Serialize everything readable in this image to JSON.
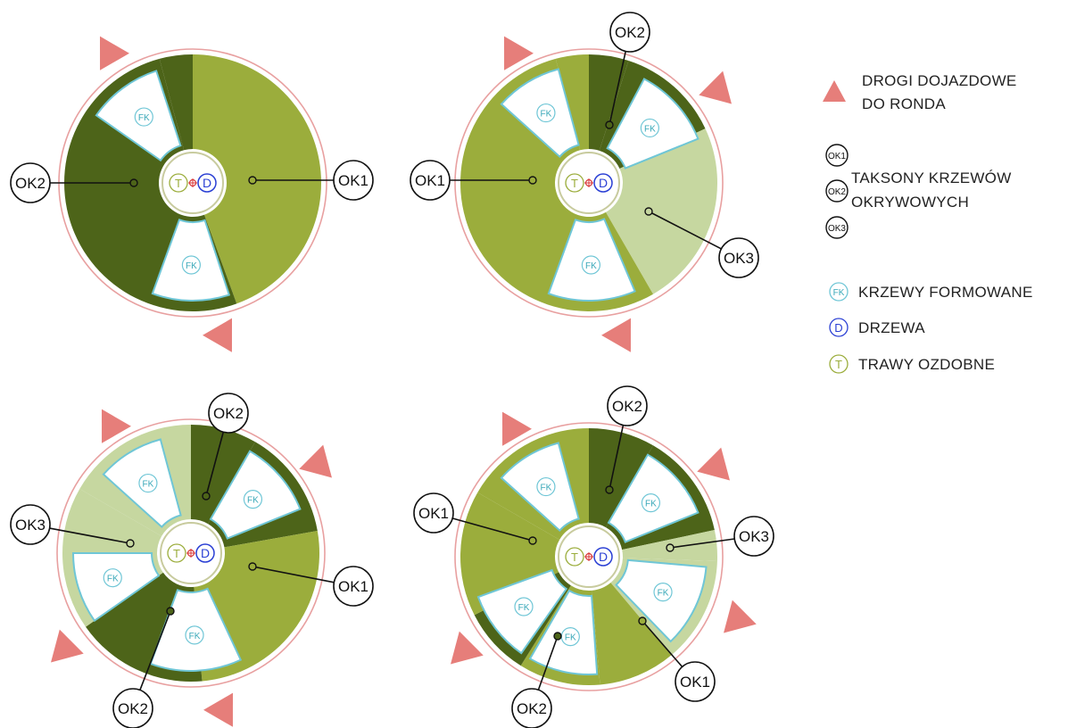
{
  "colors": {
    "ok1": "#9bad3c",
    "ok2": "#4d6419",
    "ok3": "#c6d7a0",
    "fk_fill": "#ffffff",
    "fk_border": "#6fc6d6",
    "fk_text": "#39a8b8",
    "ring": "#e8a0a0",
    "triangle": "#e67e7a",
    "d_color": "#2a3fd4",
    "t_color": "#9bad3c",
    "center_mark": "#d93a3a",
    "center_border": "#c8cb9e"
  },
  "symbols": {
    "fk": "FK",
    "d": "D",
    "t": "T",
    "ok1": "OK1",
    "ok2": "OK2",
    "ok3": "OK3"
  },
  "legend": {
    "roads_line1": "DROGI DOJAZDOWE",
    "roads_line2": "DO RONDA",
    "taxa_line1": "TAKSONY KRZEWÓW",
    "taxa_line2": "OKRYWOWYCH",
    "fk_label": "KRZEWY FORMOWANE",
    "d_label": "DRZEWA",
    "t_label": "TRAWY OZDOBNE"
  },
  "roundabouts": [
    {
      "id": "top-left",
      "sectors": [
        {
          "from": 0,
          "to": 160,
          "type": "ok1"
        },
        {
          "from": 160,
          "to": 345,
          "type": "ok2"
        },
        {
          "from": 345,
          "to": 360,
          "type": "ok2"
        }
      ],
      "fk": [
        {
          "from": -55,
          "to": -18
        },
        {
          "from": 162,
          "to": 200
        }
      ],
      "labels": [
        {
          "text": "OK1",
          "type": "ok1"
        },
        {
          "text": "OK2",
          "type": "ok2"
        }
      ],
      "roads": 2
    },
    {
      "id": "top-right",
      "sectors": [
        {
          "from": 0,
          "to": 18,
          "type": "ok2"
        },
        {
          "from": 18,
          "to": 65,
          "type": "ok2"
        },
        {
          "from": 65,
          "to": 150,
          "type": "ok3"
        },
        {
          "from": 150,
          "to": 345,
          "type": "ok1"
        },
        {
          "from": 345,
          "to": 360,
          "type": "ok1"
        }
      ],
      "fk": [
        {
          "from": -48,
          "to": -15
        },
        {
          "from": 28,
          "to": 68
        },
        {
          "from": 157,
          "to": 200
        }
      ],
      "labels": [
        {
          "text": "OK1",
          "type": "ok1"
        },
        {
          "text": "OK2",
          "type": "ok2"
        },
        {
          "text": "OK3",
          "type": "ok3"
        }
      ],
      "roads": 3
    },
    {
      "id": "bottom-left",
      "sectors": [
        {
          "from": 0,
          "to": 30,
          "type": "ok2"
        },
        {
          "from": 30,
          "to": 80,
          "type": "ok2"
        },
        {
          "from": 80,
          "to": 175,
          "type": "ok1"
        },
        {
          "from": 175,
          "to": 235,
          "type": "ok2"
        },
        {
          "from": 235,
          "to": 300,
          "type": "ok3"
        },
        {
          "from": 300,
          "to": 360,
          "type": "ok3"
        }
      ],
      "fk": [
        {
          "from": -48,
          "to": -15
        },
        {
          "from": 30,
          "to": 68
        },
        {
          "from": 155,
          "to": 200
        },
        {
          "from": 235,
          "to": 270
        }
      ],
      "labels": [
        {
          "text": "OK1",
          "type": "ok1"
        },
        {
          "text": "OK2",
          "type": "ok2"
        },
        {
          "text": "OK2",
          "type": "ok2"
        },
        {
          "text": "OK3",
          "type": "ok3"
        }
      ],
      "roads": 4
    },
    {
      "id": "bottom-right",
      "sectors": [
        {
          "from": 0,
          "to": 30,
          "type": "ok2"
        },
        {
          "from": 30,
          "to": 78,
          "type": "ok2"
        },
        {
          "from": 78,
          "to": 92,
          "type": "ok3"
        },
        {
          "from": 92,
          "to": 140,
          "type": "ok3"
        },
        {
          "from": 140,
          "to": 175,
          "type": "ok1"
        },
        {
          "from": 175,
          "to": 212,
          "type": "ok1"
        },
        {
          "from": 212,
          "to": 243,
          "type": "ok2"
        },
        {
          "from": 243,
          "to": 300,
          "type": "ok1"
        },
        {
          "from": 300,
          "to": 360,
          "type": "ok1"
        }
      ],
      "fk": [
        {
          "from": -48,
          "to": -15
        },
        {
          "from": 30,
          "to": 68
        },
        {
          "from": 95,
          "to": 136
        },
        {
          "from": 176,
          "to": 210
        },
        {
          "from": 215,
          "to": 250
        }
      ],
      "labels": [
        {
          "text": "OK1",
          "type": "ok1"
        },
        {
          "text": "OK2",
          "type": "ok2"
        },
        {
          "text": "OK3",
          "type": "ok3"
        },
        {
          "text": "OK1",
          "type": "ok1"
        },
        {
          "text": "OK2",
          "type": "ok2"
        }
      ],
      "roads": 4
    }
  ]
}
